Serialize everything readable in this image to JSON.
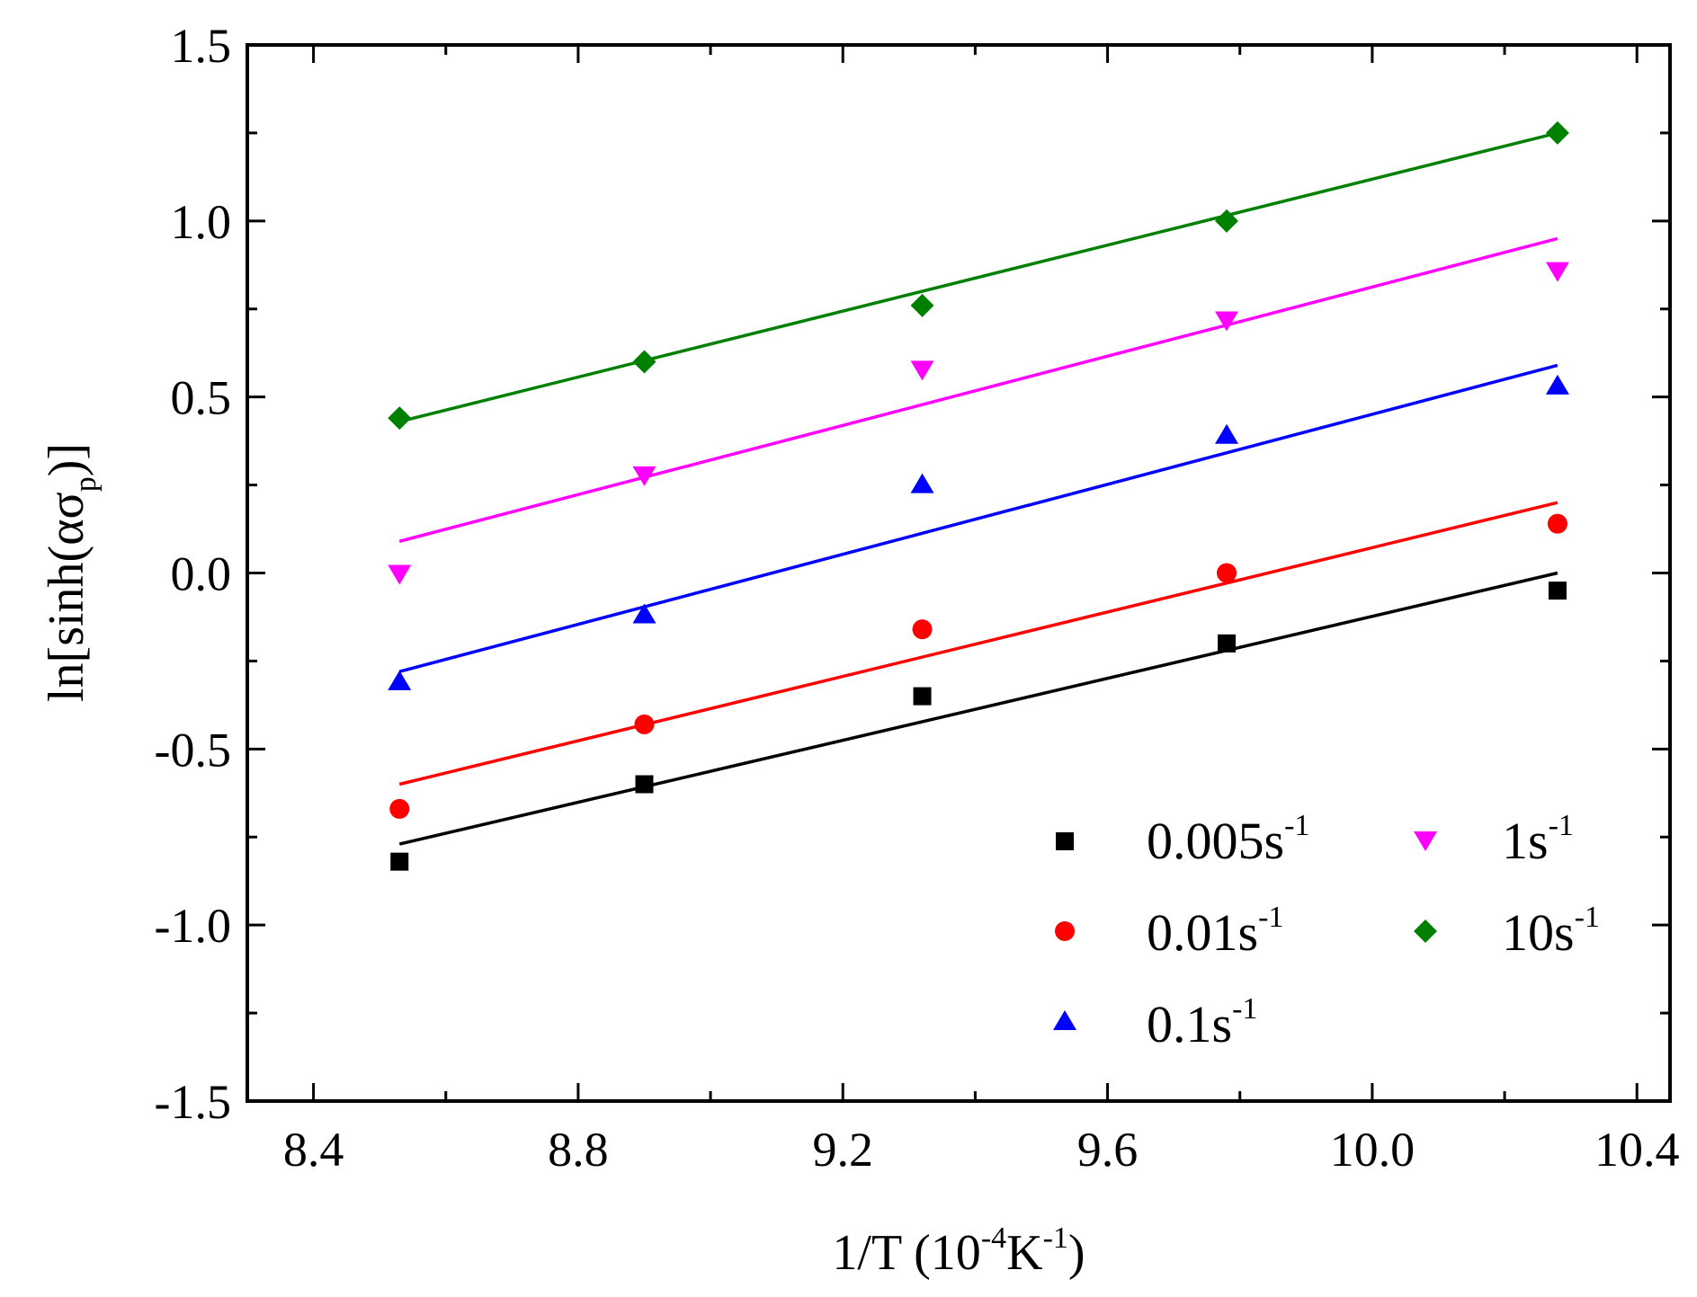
{
  "chart_data": {
    "type": "scatter",
    "title": "",
    "xlabel": {
      "prefix": "1/T (10",
      "sup1": "-4",
      "mid": "K",
      "sup2": "-1",
      "suffix": ")"
    },
    "ylabel": {
      "prefix": "ln[sinh(ασ",
      "sub": "p",
      "suffix": ")]"
    },
    "xlim": [
      8.3,
      10.45
    ],
    "ylim": [
      -1.5,
      1.5
    ],
    "xticks": [
      8.4,
      8.8,
      9.2,
      9.6,
      10.0,
      10.4
    ],
    "xtick_labels": [
      "8.4",
      "8.8",
      "9.2",
      "9.6",
      "10.0",
      "10.4"
    ],
    "yticks": [
      -1.5,
      -1.0,
      -0.5,
      0.0,
      0.5,
      1.0,
      1.5
    ],
    "ytick_labels": [
      "-1.5",
      "-1.0",
      "-0.5",
      "0.0",
      "0.5",
      "1.0",
      "1.5"
    ],
    "x": [
      8.53,
      8.9,
      9.32,
      9.78,
      10.28
    ],
    "legend_placement": "bottom-right",
    "series": [
      {
        "name": "0.005s",
        "sup": "-1",
        "marker": "square",
        "color": "#000000",
        "values": [
          -0.82,
          -0.6,
          -0.35,
          -0.2,
          -0.05
        ],
        "fit": [
          [
            8.53,
            -0.77
          ],
          [
            10.28,
            0.0
          ]
        ]
      },
      {
        "name": "0.01s",
        "sup": "-1",
        "marker": "circle",
        "color": "#ff0000",
        "values": [
          -0.67,
          -0.43,
          -0.16,
          0.0,
          0.14
        ],
        "fit": [
          [
            8.53,
            -0.6
          ],
          [
            10.28,
            0.2
          ]
        ]
      },
      {
        "name": "0.1s",
        "sup": "-1",
        "marker": "triangle-up",
        "color": "#0000ff",
        "values": [
          -0.31,
          -0.12,
          0.25,
          0.39,
          0.53
        ],
        "fit": [
          [
            8.53,
            -0.28
          ],
          [
            10.28,
            0.59
          ]
        ]
      },
      {
        "name": "1s",
        "sup": "-1",
        "marker": "triangle-down",
        "color": "#ff00ff",
        "values": [
          0.0,
          0.28,
          0.58,
          0.72,
          0.86
        ],
        "fit": [
          [
            8.53,
            0.09
          ],
          [
            10.28,
            0.95
          ]
        ]
      },
      {
        "name": "10s",
        "sup": "-1",
        "marker": "diamond",
        "color": "#008000",
        "values": [
          0.44,
          0.6,
          0.76,
          1.0,
          1.25
        ],
        "fit": [
          [
            8.53,
            0.43
          ],
          [
            10.28,
            1.25
          ]
        ]
      }
    ]
  }
}
